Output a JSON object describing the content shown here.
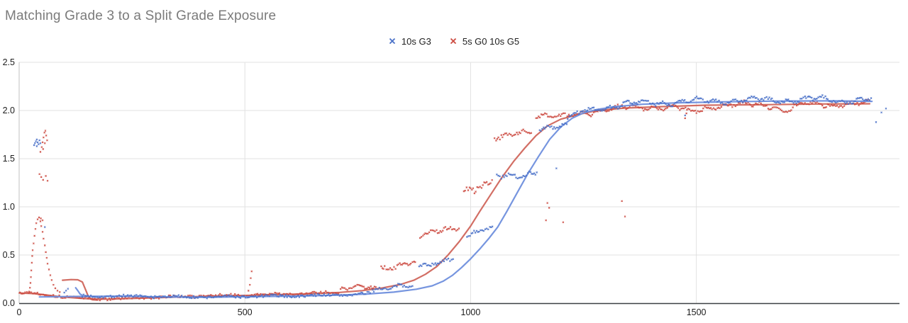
{
  "chart_data": {
    "type": "scatter",
    "title": "Matching Grade 3 to a Split Grade Exposure",
    "legend_position": "top",
    "grid": true,
    "x_axis": {
      "range": [
        0,
        1950
      ],
      "ticks": [
        0,
        500,
        1000,
        1500
      ],
      "tick_labels": [
        "0",
        "500",
        "1000",
        "1500"
      ]
    },
    "y_axis": {
      "range": [
        0,
        2.5
      ],
      "ticks": [
        0,
        0.5,
        1.0,
        1.5,
        2.0,
        2.5
      ],
      "tick_labels": [
        "0.0",
        "0.5",
        "1.0",
        "1.5",
        "2.0",
        "2.5"
      ]
    },
    "colors": {
      "gridline": "#e2e2e2",
      "plot_left_border": "#c2c2c2",
      "axis_line": "#3c4043",
      "title_text": "#7b7b7b",
      "label_text": "#1c1c1c"
    },
    "series": [
      {
        "name": "5s G0 10s G5",
        "marker": "x",
        "point_color": "#cc4b41",
        "line_color": "#d0665c",
        "seed": 13,
        "trend": [
          [
            0,
            0.105
          ],
          [
            30,
            0.1
          ],
          [
            60,
            0.085
          ],
          [
            95,
            0.065
          ],
          [
            130,
            0.052
          ],
          [
            165,
            0.042
          ],
          [
            200,
            0.042
          ],
          [
            260,
            0.05
          ],
          [
            330,
            0.06
          ],
          [
            420,
            0.072
          ],
          [
            520,
            0.082
          ],
          [
            600,
            0.092
          ],
          [
            660,
            0.1
          ],
          [
            710,
            0.112
          ],
          [
            760,
            0.13
          ],
          [
            805,
            0.158
          ],
          [
            845,
            0.195
          ],
          [
            875,
            0.24
          ],
          [
            900,
            0.3
          ],
          [
            925,
            0.38
          ],
          [
            950,
            0.5
          ],
          [
            975,
            0.64
          ],
          [
            1000,
            0.8
          ],
          [
            1020,
            0.95
          ],
          [
            1045,
            1.13
          ],
          [
            1070,
            1.31
          ],
          [
            1095,
            1.47
          ],
          [
            1120,
            1.61
          ],
          [
            1145,
            1.74
          ],
          [
            1170,
            1.84
          ],
          [
            1200,
            1.91
          ],
          [
            1240,
            1.96
          ],
          [
            1280,
            2.0
          ],
          [
            1340,
            2.025
          ],
          [
            1420,
            2.04
          ],
          [
            1520,
            2.055
          ],
          [
            1650,
            2.06
          ],
          [
            1770,
            2.068
          ],
          [
            1884,
            2.07
          ]
        ],
        "extra_lines": [
          [
            [
              96,
              0.238
            ],
            [
              115,
              0.245
            ],
            [
              130,
              0.243
            ],
            [
              140,
              0.22
            ],
            [
              148,
              0.13
            ],
            [
              154,
              0.06
            ],
            [
              162,
              0.035
            ],
            [
              174,
              0.032
            ]
          ]
        ],
        "baseline_dots": {
          "x0": 2,
          "x1": 708,
          "offset": 0.004
        },
        "steps": [
          {
            "x0": 712,
            "x1": 790,
            "y": 0.145,
            "y2": 0.165
          },
          {
            "x0": 802,
            "x1": 880,
            "y": 0.37,
            "y2": 0.41,
            "jitter": 0.035
          },
          {
            "x0": 888,
            "x1": 975,
            "y": 0.71,
            "y2": 0.78,
            "jitter": 0.04
          },
          {
            "x0": 985,
            "x1": 1050,
            "y": 1.15,
            "y2": 1.27,
            "jitter": 0.07
          },
          {
            "x0": 1053,
            "x1": 1137,
            "y": 1.72,
            "y2": 1.77,
            "jitter": 0.04
          },
          {
            "x0": 1145,
            "x1": 1212,
            "y": 1.93,
            "y2": 1.97,
            "jitter": 0.035
          },
          {
            "x0": 1214,
            "x1": 1884,
            "follow": true,
            "offset": 0.0,
            "jitter": 0.032,
            "wiggle": 0.016,
            "dips": [
              {
                "x": 1490,
                "w": 22,
                "d": 0.07
              },
              {
                "x": 1700,
                "w": 18,
                "d": 0.06
              }
            ]
          }
        ],
        "points": [
          [
            22,
            0.12
          ],
          [
            24,
            0.16
          ],
          [
            25,
            0.21
          ],
          [
            26,
            0.27
          ],
          [
            27,
            0.34
          ],
          [
            28,
            0.42
          ],
          [
            29,
            0.49
          ],
          [
            30,
            0.55
          ],
          [
            32,
            0.62
          ],
          [
            34,
            0.7
          ],
          [
            36,
            0.77
          ],
          [
            38,
            0.83
          ],
          [
            41,
            0.87
          ],
          [
            44,
            0.89
          ],
          [
            47,
            0.85
          ],
          [
            49,
            0.8
          ],
          [
            52,
            0.74
          ],
          [
            54,
            0.67
          ],
          [
            57,
            0.6
          ],
          [
            59,
            0.53
          ],
          [
            61,
            0.47
          ],
          [
            63,
            0.41
          ],
          [
            66,
            0.35
          ],
          [
            69,
            0.29
          ],
          [
            72,
            0.24
          ],
          [
            76,
            0.19
          ],
          [
            80,
            0.155
          ],
          [
            85,
            0.13
          ],
          [
            90,
            0.115
          ],
          [
            48,
            0.88
          ],
          [
            52,
            0.86
          ],
          [
            47,
            1.57
          ],
          [
            50,
            1.62
          ],
          [
            52,
            1.67
          ],
          [
            54,
            1.72
          ],
          [
            56,
            1.77
          ],
          [
            58,
            1.79
          ],
          [
            60,
            1.74
          ],
          [
            62,
            1.69
          ],
          [
            57,
            1.66
          ],
          [
            53,
            1.6
          ],
          [
            45,
            1.34
          ],
          [
            49,
            1.31
          ],
          [
            53,
            1.28
          ],
          [
            59,
            1.32
          ],
          [
            63,
            1.27
          ],
          [
            508,
            0.13
          ],
          [
            511,
            0.19
          ],
          [
            513,
            0.26
          ],
          [
            515,
            0.33
          ]
        ],
        "outliers": [
          [
            1167,
            0.86
          ],
          [
            1170,
            1.04
          ],
          [
            1174,
            0.99
          ],
          [
            1205,
            0.84
          ],
          [
            1335,
            1.06
          ],
          [
            1342,
            0.9
          ],
          [
            1475,
            1.92
          ],
          [
            1478,
            1.97
          ],
          [
            1217,
            1.94
          ]
        ]
      },
      {
        "name": "10s G3",
        "marker": "x",
        "point_color": "#4a71c8",
        "line_color": "#6f8fdd",
        "seed": 7,
        "trend": [
          [
            45,
            0.065
          ],
          [
            130,
            0.07
          ],
          [
            220,
            0.072
          ],
          [
            320,
            0.065
          ],
          [
            420,
            0.062
          ],
          [
            520,
            0.068
          ],
          [
            620,
            0.074
          ],
          [
            700,
            0.082
          ],
          [
            770,
            0.095
          ],
          [
            830,
            0.115
          ],
          [
            880,
            0.145
          ],
          [
            915,
            0.18
          ],
          [
            940,
            0.23
          ],
          [
            960,
            0.29
          ],
          [
            980,
            0.37
          ],
          [
            1000,
            0.46
          ],
          [
            1020,
            0.56
          ],
          [
            1040,
            0.67
          ],
          [
            1060,
            0.79
          ],
          [
            1080,
            0.95
          ],
          [
            1100,
            1.12
          ],
          [
            1125,
            1.33
          ],
          [
            1150,
            1.52
          ],
          [
            1175,
            1.7
          ],
          [
            1200,
            1.83
          ],
          [
            1225,
            1.92
          ],
          [
            1250,
            1.975
          ],
          [
            1280,
            2.01
          ],
          [
            1320,
            2.04
          ],
          [
            1380,
            2.065
          ],
          [
            1460,
            2.08
          ],
          [
            1560,
            2.09
          ],
          [
            1680,
            2.098
          ],
          [
            1800,
            2.1
          ],
          [
            1889,
            2.095
          ]
        ],
        "extra_lines": [
          [
            [
              125,
              0.16
            ],
            [
              130,
              0.13
            ],
            [
              135,
              0.095
            ],
            [
              142,
              0.075
            ]
          ]
        ],
        "baseline_dots": {
          "x0": 140,
          "x1": 780,
          "offset": 0.002
        },
        "steps": [
          {
            "x0": 783,
            "x1": 874,
            "y": 0.155,
            "y2": 0.175
          },
          {
            "x0": 886,
            "x1": 962,
            "y": 0.4,
            "y2": 0.44,
            "jitter": 0.035
          },
          {
            "x0": 992,
            "x1": 1050,
            "y": 0.72,
            "y2": 0.77
          },
          {
            "x0": 1058,
            "x1": 1148,
            "y": 1.31,
            "y2": 1.36,
            "jitter": 0.04
          },
          {
            "x0": 1153,
            "x1": 1213,
            "y": 1.8,
            "y2": 1.87
          },
          {
            "x0": 1215,
            "x1": 1889,
            "follow": true,
            "offset": 0.012,
            "jitter": 0.028,
            "wiggle": 0.018
          }
        ],
        "points": [
          [
            33,
            1.64
          ],
          [
            35,
            1.66
          ],
          [
            37,
            1.68
          ],
          [
            39,
            1.7
          ],
          [
            41,
            1.67
          ],
          [
            43,
            1.65
          ],
          [
            45,
            1.69
          ],
          [
            47,
            1.66
          ],
          [
            39,
            1.63
          ],
          [
            57,
            0.79
          ],
          [
            100,
            0.11
          ],
          [
            104,
            0.13
          ],
          [
            108,
            0.15
          ]
        ],
        "outliers": [
          [
            1190,
            1.4
          ],
          [
            1475,
            1.95
          ],
          [
            1898,
            1.88
          ],
          [
            1910,
            1.98
          ],
          [
            1920,
            2.02
          ]
        ]
      }
    ]
  }
}
